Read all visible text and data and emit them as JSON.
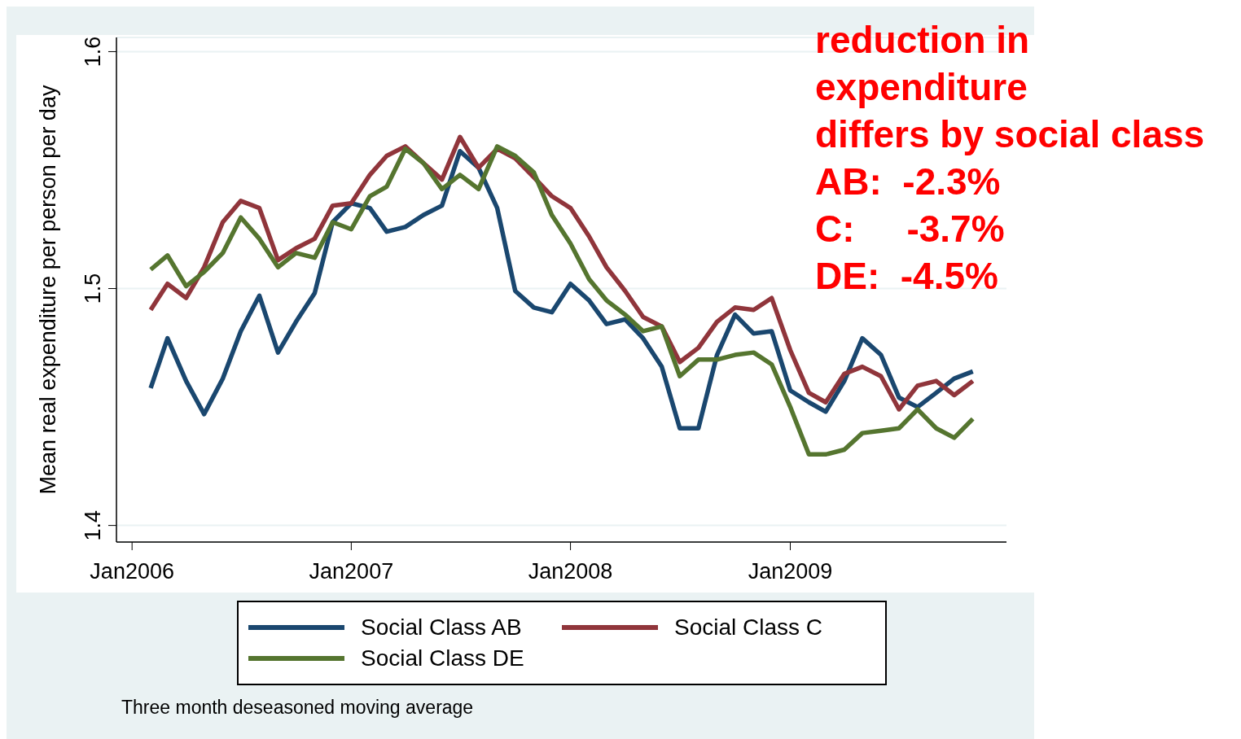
{
  "chart_data": {
    "type": "line",
    "ylabel": "Mean real expenditure per person per day",
    "x": [
      "2006-02",
      "2006-03",
      "2006-04",
      "2006-05",
      "2006-06",
      "2006-07",
      "2006-08",
      "2006-09",
      "2006-10",
      "2006-11",
      "2006-12",
      "2007-01",
      "2007-02",
      "2007-03",
      "2007-04",
      "2007-05",
      "2007-06",
      "2007-07",
      "2007-08",
      "2007-09",
      "2007-10",
      "2007-11",
      "2007-12",
      "2008-01",
      "2008-02",
      "2008-03",
      "2008-04",
      "2008-05",
      "2008-06",
      "2008-07",
      "2008-08",
      "2008-09",
      "2008-10",
      "2008-11",
      "2008-12",
      "2009-01",
      "2009-02",
      "2009-03",
      "2009-04",
      "2009-05",
      "2009-06",
      "2009-07",
      "2009-08",
      "2009-09",
      "2009-10",
      "2009-11"
    ],
    "series": [
      {
        "name": "Social Class AB",
        "color": "#1a476f",
        "values": [
          1.458,
          1.479,
          1.461,
          1.447,
          1.462,
          1.482,
          1.497,
          1.473,
          1.486,
          1.498,
          1.528,
          1.536,
          1.534,
          1.524,
          1.526,
          1.531,
          1.535,
          1.558,
          1.551,
          1.534,
          1.499,
          1.492,
          1.49,
          1.502,
          1.495,
          1.485,
          1.487,
          1.479,
          1.467,
          1.441,
          1.441,
          1.472,
          1.489,
          1.481,
          1.482,
          1.457,
          1.452,
          1.448,
          1.461,
          1.479,
          1.472,
          1.454,
          1.45,
          1.456,
          1.462,
          1.465
        ]
      },
      {
        "name": "Social Class C",
        "color": "#90353b",
        "values": [
          1.491,
          1.502,
          1.496,
          1.509,
          1.528,
          1.537,
          1.534,
          1.512,
          1.517,
          1.521,
          1.535,
          1.536,
          1.548,
          1.556,
          1.56,
          1.553,
          1.546,
          1.564,
          1.551,
          1.559,
          1.555,
          1.547,
          1.539,
          1.534,
          1.522,
          1.509,
          1.499,
          1.488,
          1.484,
          1.469,
          1.475,
          1.486,
          1.492,
          1.491,
          1.496,
          1.474,
          1.456,
          1.452,
          1.464,
          1.467,
          1.463,
          1.449,
          1.459,
          1.461,
          1.455,
          1.461
        ]
      },
      {
        "name": "Social Class DE",
        "color": "#55752f",
        "values": [
          1.508,
          1.514,
          1.501,
          1.507,
          1.515,
          1.53,
          1.521,
          1.509,
          1.515,
          1.513,
          1.528,
          1.525,
          1.539,
          1.543,
          1.559,
          1.553,
          1.542,
          1.548,
          1.542,
          1.56,
          1.556,
          1.549,
          1.531,
          1.519,
          1.504,
          1.495,
          1.489,
          1.482,
          1.484,
          1.463,
          1.47,
          1.47,
          1.472,
          1.473,
          1.468,
          1.45,
          1.43,
          1.43,
          1.432,
          1.439,
          1.44,
          1.441,
          1.449,
          1.441,
          1.437,
          1.445
        ]
      }
    ],
    "xlim": [
      "2005-12-06",
      "2009-12-27"
    ],
    "xticks": [
      {
        "value": "2006-01",
        "label": "Jan2006"
      },
      {
        "value": "2007-01",
        "label": "Jan2007"
      },
      {
        "value": "2008-01",
        "label": "Jan2008"
      },
      {
        "value": "2009-01",
        "label": "Jan2009"
      }
    ],
    "ylim": [
      1.393,
      1.606
    ],
    "yticks": [
      1.4,
      1.5,
      1.6
    ],
    "grid": "y",
    "legend": "bottom",
    "marker": "none",
    "line_style": "solid",
    "annotations": [
      "reduction in",
      "expenditure",
      "differs by social class",
      "AB:  -2.3%",
      "C:     -3.7%",
      "DE:  -4.5%",
      "Three month deseasoned moving average"
    ]
  }
}
